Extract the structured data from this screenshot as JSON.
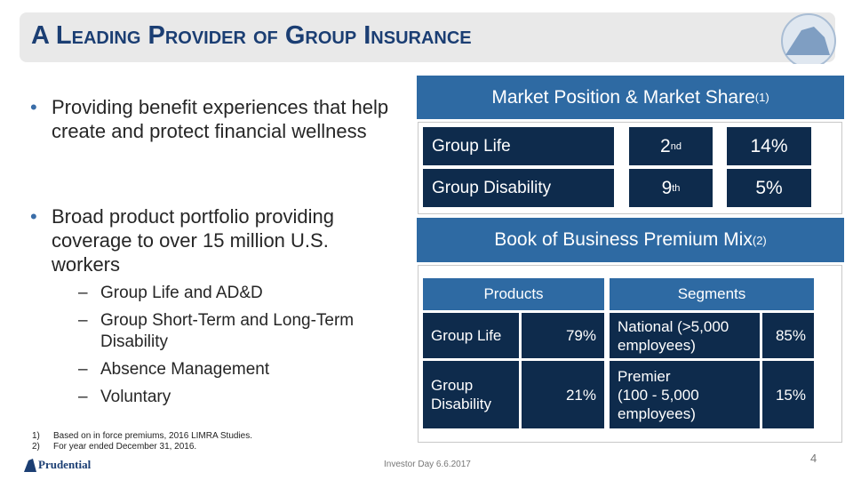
{
  "header": {
    "title": "A Leading Provider of Group Insurance"
  },
  "bullets": [
    {
      "text": "Providing benefit experiences that help create and protect financial wellness",
      "sub": []
    },
    {
      "text": "Broad product portfolio providing coverage to over 15 million U.S. workers",
      "sub": [
        "Group Life and AD&D",
        "Group Short-Term and Long-Term Disability",
        "Absence Management",
        "Voluntary"
      ]
    }
  ],
  "market_position": {
    "title": "Market Position & Market Share",
    "title_note": "(1)",
    "rows": [
      {
        "label": "Group Life",
        "rank": "2",
        "rank_suffix": "nd",
        "share": "14%"
      },
      {
        "label": "Group Disability",
        "rank": "9",
        "rank_suffix": "th",
        "share": "5%"
      }
    ]
  },
  "premium_mix": {
    "title": "Book of Business Premium Mix",
    "title_note": "(2)",
    "headers": [
      "Products",
      "Segments"
    ],
    "rows": [
      [
        "Group Life",
        "79%",
        "National (>5,000 employees)",
        "85%"
      ],
      [
        "Group Disability",
        "21%",
        "Premier\n(100 - 5,000 employees)",
        "15%"
      ]
    ]
  },
  "footnotes": [
    {
      "marker": "1)",
      "text": "Based on in force premiums, 2016 LIMRA Studies."
    },
    {
      "marker": "2)",
      "text": "For year ended December 31, 2016."
    }
  ],
  "footer": {
    "logo": "Prudential",
    "event": "Investor Day 6.6.2017",
    "page": "4"
  }
}
